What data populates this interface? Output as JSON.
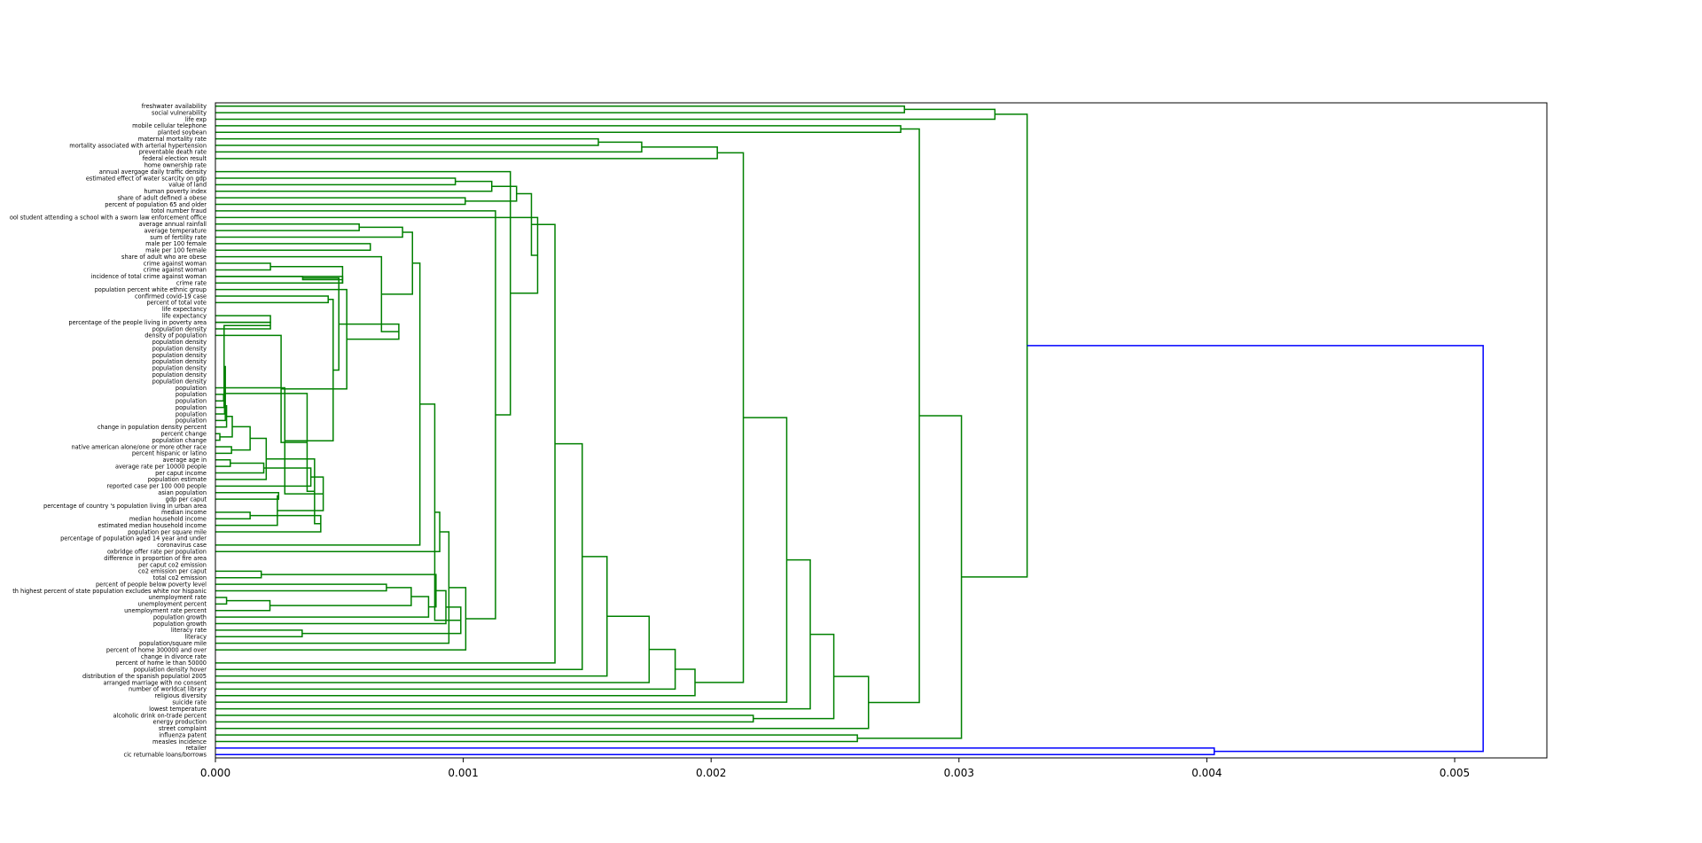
{
  "chart_data": {
    "type": "dendrogram",
    "orientation": "horizontal",
    "xlim": [
      0,
      0.005372
    ],
    "x_ticks": [
      "0.000",
      "0.001",
      "0.002",
      "0.003",
      "0.004",
      "0.005"
    ],
    "x_tick_values": [
      0,
      0.001,
      0.002,
      0.003,
      0.004,
      0.005
    ],
    "colors": {
      "cluster": "#008000",
      "root": "#0000ff",
      "frame": "#000000"
    },
    "leaves": [
      "freshwater availability",
      "social vulnerability",
      "life exp",
      "mobile cellular telephone",
      "planted soybean",
      "maternal mortality rate",
      "mortality associated with arterial hypertension",
      "preventable death rate",
      "federal election result",
      "home ownership rate",
      "annual avergage daily traffic density",
      "estimated effect of water scarcity on gdp",
      "value of land",
      "human poverty index",
      "share of adult defined a obese",
      "percent of population 65 and older",
      "totol number fraud",
      "ool student attending a school with a sworn law enforcement office",
      "average annual rainfall",
      "average temperature",
      "sum of fertility rate",
      "male per 100 female",
      "male per 100 female",
      "share of adult who are obese",
      "crime against woman",
      "crime against woman",
      "incidence of total crime against woman",
      "crime rate",
      "population percent white ethnic group",
      "confirmed covid-19 case",
      "percent of total vote",
      "life expectancy",
      "life expectancy",
      "percentage of the people living in poverty area",
      "population density",
      "density of population",
      "population density",
      "population density",
      "population density",
      "population density",
      "population density",
      "population density",
      "population density",
      "population",
      "population",
      "population",
      "population",
      "population",
      "population",
      "change in population density percent",
      "percent change",
      "population change",
      "native american alone/one or more other race",
      "percent hispanic or latino",
      "average age in",
      "average rate per 10000 people",
      "per caput income",
      "population estimate",
      "reported case per 100 000 people",
      "asian population",
      "gdp per caput",
      "percentage of country 's population living in urban area",
      "median income",
      "median household income",
      "estimated median household income",
      "population per square mile",
      "percentage of population aged 14 year and under",
      "coronavirus case",
      "oxbridge offer rate per population",
      "difference in proportion of fire area",
      "per caput co2 emission",
      "co2 emission per caput",
      "total co2 emission",
      "percent of people below poverty level",
      "th highest percent of state population excludes white nor hispanic",
      "unemployment rate",
      "unemployment percent",
      "unemployment rate percent",
      "population growth",
      "population growth",
      "literacy rate",
      "literacy",
      "population/square mile",
      "percent of home 300000 and over",
      "change in divorce rate",
      "percent of home le than 50000",
      "population density hover",
      "distribution of the spanish populatiol 2005",
      "arranged marriage with no consent",
      "number of worldcat library",
      "religious diversity",
      "suicide rate",
      "lowest temperature",
      "alcoholic drink on-trade percent",
      "energy production",
      "street complaint",
      "influenza patent",
      "measles incidence",
      "retailer",
      "cic returnable loans/borrows"
    ],
    "links": [
      [
        0,
        1,
        0.00278
      ],
      [
        100,
        2,
        0.003145
      ],
      [
        3,
        4,
        0.002765
      ],
      [
        5,
        6,
        0.001545
      ],
      [
        103,
        7,
        0.00172
      ],
      [
        104,
        8,
        0.002025
      ],
      [
        11,
        12,
        0.000968
      ],
      [
        106,
        13,
        0.001115
      ],
      [
        14,
        15,
        0.001008
      ],
      [
        107,
        108,
        0.001215
      ],
      [
        21,
        22,
        0.000625
      ],
      [
        26,
        27,
        0.000513
      ],
      [
        32,
        33,
        0.000222
      ],
      [
        24,
        25,
        0.000222
      ],
      [
        111,
        26,
        0.000352
      ],
      [
        113,
        27,
        0.000513
      ],
      [
        29,
        30,
        0.000455
      ],
      [
        33,
        34,
        0.000222
      ],
      [
        44,
        45,
        3.3e-05
      ],
      [
        117,
        46,
        3.5e-05
      ],
      [
        118,
        47,
        3.7e-05
      ],
      [
        119,
        48,
        4e-05
      ],
      [
        120,
        49,
        4.5e-05
      ],
      [
        50,
        51,
        1.8e-05
      ],
      [
        52,
        53,
        6.5e-05
      ],
      [
        122,
        123,
        6.8e-05
      ],
      [
        54,
        55,
        6e-05
      ],
      [
        124,
        125,
        0.00014
      ],
      [
        126,
        56,
        0.000195
      ],
      [
        127,
        57,
        0.000205
      ],
      [
        59,
        60,
        0.000255
      ],
      [
        62,
        63,
        0.00014
      ],
      [
        130,
        64,
        0.00025
      ],
      [
        131,
        65,
        0.000425
      ],
      [
        128,
        58,
        0.000385
      ],
      [
        133,
        129,
        0.0004
      ],
      [
        134,
        132,
        0.000435
      ],
      [
        121,
        135,
        0.00037
      ],
      [
        136,
        43,
        0.00028
      ],
      [
        137,
        35,
        0.000265
      ],
      [
        116,
        138,
        0.000475
      ],
      [
        139,
        28,
        0.00053
      ],
      [
        114,
        140,
        0.000498
      ],
      [
        18,
        19,
        0.00058
      ],
      [
        142,
        141,
        0.00074
      ],
      [
        143,
        20,
        0.000755
      ],
      [
        23,
        144,
        0.00067
      ],
      [
        145,
        146,
        0.000795
      ],
      [
        147,
        67,
        0.000825
      ],
      [
        71,
        72,
        0.000185
      ],
      [
        75,
        76,
        4.5e-05
      ],
      [
        150,
        77,
        0.00022
      ],
      [
        73,
        74,
        0.00069
      ],
      [
        152,
        151,
        0.00079
      ],
      [
        153,
        78,
        0.00086
      ],
      [
        154,
        149,
        0.00089
      ],
      [
        155,
        79,
        0.00093
      ],
      [
        80,
        81,
        0.00035
      ],
      [
        156,
        157,
        0.00099
      ],
      [
        148,
        158,
        0.000885
      ],
      [
        159,
        68,
        0.000905
      ],
      [
        160,
        82,
        0.000942
      ],
      [
        161,
        83,
        0.00101
      ],
      [
        162,
        16,
        0.00113
      ],
      [
        163,
        10,
        0.00119
      ],
      [
        164,
        17,
        0.0013
      ],
      [
        165,
        109,
        0.001275
      ],
      [
        166,
        85,
        0.00137
      ],
      [
        167,
        86,
        0.00148
      ],
      [
        168,
        87,
        0.00158
      ],
      [
        169,
        88,
        0.00175
      ],
      [
        170,
        89,
        0.001855
      ],
      [
        171,
        90,
        0.001935
      ],
      [
        105,
        172,
        0.00213
      ],
      [
        173,
        91,
        0.002305
      ],
      [
        174,
        92,
        0.0024
      ],
      [
        93,
        94,
        0.00217
      ],
      [
        175,
        176,
        0.002495
      ],
      [
        177,
        95,
        0.002635
      ],
      [
        96,
        97,
        0.00259
      ],
      [
        102,
        178,
        0.00284
      ],
      [
        179,
        180,
        0.00301
      ],
      [
        101,
        181,
        0.003275
      ],
      [
        98,
        99,
        0.00403
      ],
      [
        182,
        183,
        0.005115
      ]
    ],
    "root_color_links": [
      83,
      84
    ]
  }
}
